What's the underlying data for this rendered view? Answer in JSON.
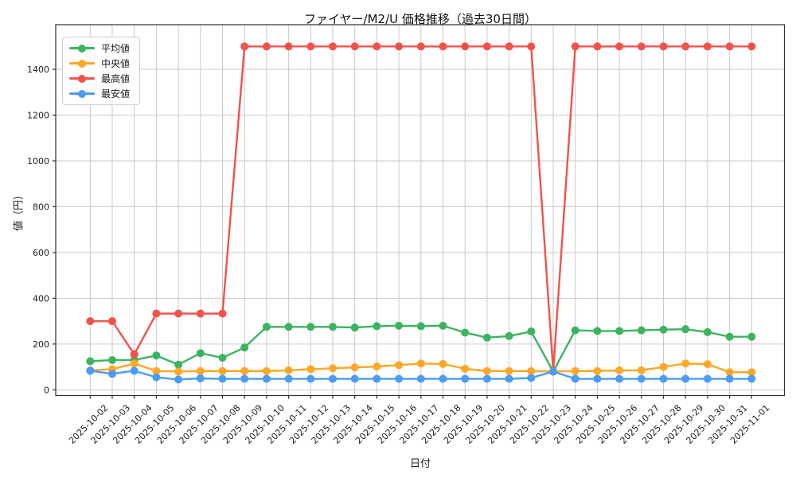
{
  "chart_data": {
    "type": "line",
    "title": "ファイヤー/M2/U 価格推移（過去30日間）",
    "xlabel": "日付",
    "ylabel": "値（円）",
    "x": [
      "2025-10-02",
      "2025-10-03",
      "2025-10-04",
      "2025-10-05",
      "2025-10-06",
      "2025-10-07",
      "2025-10-08",
      "2025-10-09",
      "2025-10-10",
      "2025-10-11",
      "2025-10-12",
      "2025-10-13",
      "2025-10-14",
      "2025-10-15",
      "2025-10-16",
      "2025-10-17",
      "2025-10-18",
      "2025-10-19",
      "2025-10-20",
      "2025-10-21",
      "2025-10-22",
      "2025-10-23",
      "2025-10-24",
      "2025-10-25",
      "2025-10-26",
      "2025-10-27",
      "2025-10-28",
      "2025-10-29",
      "2025-10-30",
      "2025-10-31",
      "2025-11-01"
    ],
    "series": [
      {
        "id": "average",
        "name": "平均値",
        "color": "#3cb45f",
        "values": [
          125,
          130,
          130,
          150,
          110,
          160,
          140,
          185,
          275,
          275,
          275,
          275,
          272,
          278,
          280,
          278,
          280,
          250,
          228,
          235,
          255,
          80,
          260,
          257,
          257,
          260,
          263,
          265,
          252,
          232,
          232
        ]
      },
      {
        "id": "median",
        "name": "中央値",
        "color": "#ffa726",
        "values": [
          85,
          90,
          115,
          82,
          80,
          82,
          82,
          82,
          82,
          85,
          90,
          94,
          98,
          102,
          108,
          115,
          113,
          92,
          82,
          82,
          82,
          80,
          82,
          82,
          85,
          85,
          100,
          115,
          112,
          77,
          77
        ]
      },
      {
        "id": "max",
        "name": "最高値",
        "color": "#f1534c",
        "values": [
          300,
          300,
          155,
          333,
          333,
          333,
          333,
          1500,
          1500,
          1500,
          1500,
          1500,
          1500,
          1500,
          1500,
          1500,
          1500,
          1500,
          1500,
          1500,
          1500,
          80,
          1500,
          1500,
          1500,
          1500,
          1500,
          1500,
          1500,
          1500,
          1500
        ]
      },
      {
        "id": "min",
        "name": "最安値",
        "color": "#4c9bf5",
        "values": [
          83,
          70,
          83,
          55,
          45,
          50,
          48,
          48,
          48,
          48,
          48,
          48,
          48,
          48,
          48,
          48,
          48,
          48,
          48,
          48,
          52,
          80,
          48,
          48,
          48,
          48,
          48,
          48,
          48,
          48,
          48
        ]
      }
    ],
    "yticks": [
      0,
      200,
      400,
      600,
      800,
      1000,
      1200,
      1400
    ],
    "ylim": [
      -25,
      1595
    ],
    "grid": true,
    "legend_position": "upper-left",
    "colors": {
      "grid": "#cacaca",
      "spine": "#2e2e2e",
      "tick_text": "#1c1c1c"
    }
  }
}
